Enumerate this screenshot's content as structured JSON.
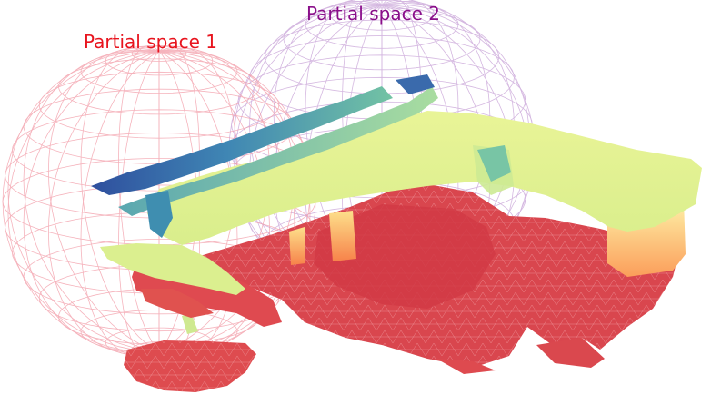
{
  "labels": {
    "partial_space_1": "Partial space 1",
    "partial_space_2": "Partial space 2"
  },
  "colors": {
    "partial_space_1": "#e8141e",
    "partial_space_2": "#8a0f8a",
    "sphere_1_wire": "#f29aa6",
    "sphere_2_wire": "#c69fd6",
    "floor": "#d9464e",
    "floor_edge": "#f2a3a6",
    "surface_yellow": "#e6f28f",
    "surface_teal": "#5fb8a8",
    "surface_blue": "#3b6bb0",
    "surface_orange": "#fbb873"
  },
  "colormap": "Spectral"
}
